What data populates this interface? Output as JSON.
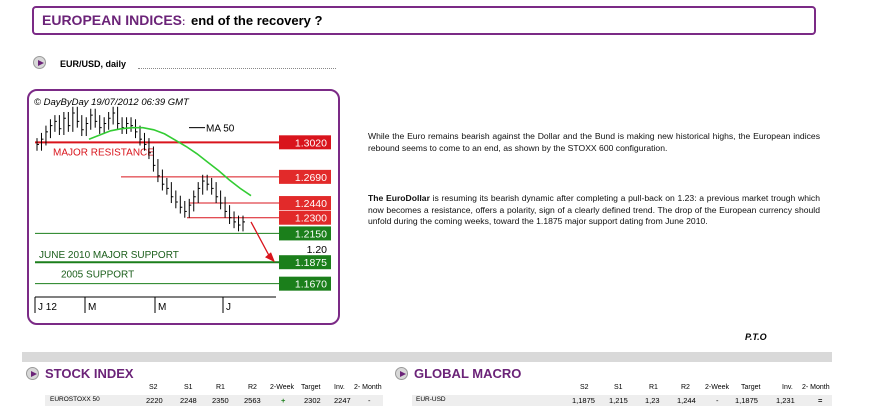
{
  "header": {
    "title_main": "EUROPEAN INDICES",
    "title_colon": ":",
    "title_sub": " end of the recovery ?"
  },
  "chart_section": {
    "label": "EUR/USD, daily"
  },
  "chart_data": {
    "type": "line",
    "title": "",
    "watermark": "© DayByDay 19/07/2012  06:39 GMT",
    "x_tick_labels": [
      "J 12",
      "M",
      "M",
      "J"
    ],
    "ma_label": "MA 50",
    "levels": [
      {
        "value": "1.3020",
        "color": "#d9141c",
        "annotation": "MAJOR RESISTANCE"
      },
      {
        "value": "1.2690",
        "color": "#e22a2a",
        "annotation": ""
      },
      {
        "value": "1.2440",
        "color": "#e22a2a",
        "annotation": ""
      },
      {
        "value": "1.2300",
        "color": "#e22a2a",
        "annotation": ""
      },
      {
        "value": "1.2150",
        "color": "#1b7f1b",
        "annotation": ""
      },
      {
        "value": "1.20",
        "color": "#ffffff",
        "annotation": ""
      },
      {
        "value": "1.1875",
        "color": "#1b7f1b",
        "annotation": "JUNE 2010 MAJOR SUPPORT"
      },
      {
        "value": "1.1670",
        "color": "#1b7f1b",
        "annotation": "2005 SUPPORT"
      }
    ],
    "price_close": [
      1.3,
      1.305,
      1.312,
      1.318,
      1.322,
      1.315,
      1.325,
      1.318,
      1.33,
      1.322,
      1.314,
      1.32,
      1.328,
      1.322,
      1.316,
      1.32,
      1.325,
      1.33,
      1.32,
      1.316,
      1.32,
      1.318,
      1.312,
      1.305,
      1.3,
      1.292,
      1.28,
      1.27,
      1.262,
      1.258,
      1.25,
      1.245,
      1.24,
      1.236,
      1.242,
      1.25,
      1.258,
      1.265,
      1.262,
      1.258,
      1.25,
      1.244,
      1.236,
      1.23,
      1.226,
      1.223,
      1.226
    ],
    "ma50": [
      1.305,
      1.309,
      1.313,
      1.315,
      1.316,
      1.316,
      1.314,
      1.31,
      1.304,
      1.298,
      1.291,
      1.283,
      1.275,
      1.266,
      1.258,
      1.251
    ],
    "forecast_target": "1.1875"
  },
  "paragraphs": {
    "p1": "While the Euro remains bearish against the Dollar and the Bund is making new historical highs, the European indices rebound seems to come to an end, as shown by the STOXX 600 configuration.",
    "p2_bold": "The EuroDollar",
    "p2_rest": " is resuming its bearish dynamic after completing a pull-back on 1.23: a previous market trough which now becomes a resistance, offers a polarity, sign of a clearly defined trend. The drop of the European currency should unfold during the coming weeks, toward the 1.1875 major support dating from June 2010."
  },
  "pto": "P.T.O",
  "stock_index": {
    "title": "STOCK INDEX",
    "headers": [
      "S2",
      "S1",
      "R1",
      "R2",
      "2-Week",
      "Target",
      "Inv.",
      "2- Month"
    ],
    "row": {
      "name": "EUROSTOXX 50",
      "values": [
        "2220",
        "2248",
        "2350",
        "2563",
        "+",
        "2302",
        "2247",
        "-"
      ]
    }
  },
  "global_macro": {
    "title": "GLOBAL MACRO",
    "headers": [
      "S2",
      "S1",
      "R1",
      "R2",
      "2-Week",
      "Target",
      "Inv.",
      "2- Month"
    ],
    "row": {
      "name": "EUR-USD",
      "values": [
        "1,1875",
        "1,215",
        "1,23",
        "1,244",
        "-",
        "1,1875",
        "1,231",
        "="
      ]
    }
  },
  "colors": {
    "accent": "#6b2378",
    "resistance": "#d9141c",
    "support": "#1b7f1b",
    "ma": "#33cc33"
  }
}
